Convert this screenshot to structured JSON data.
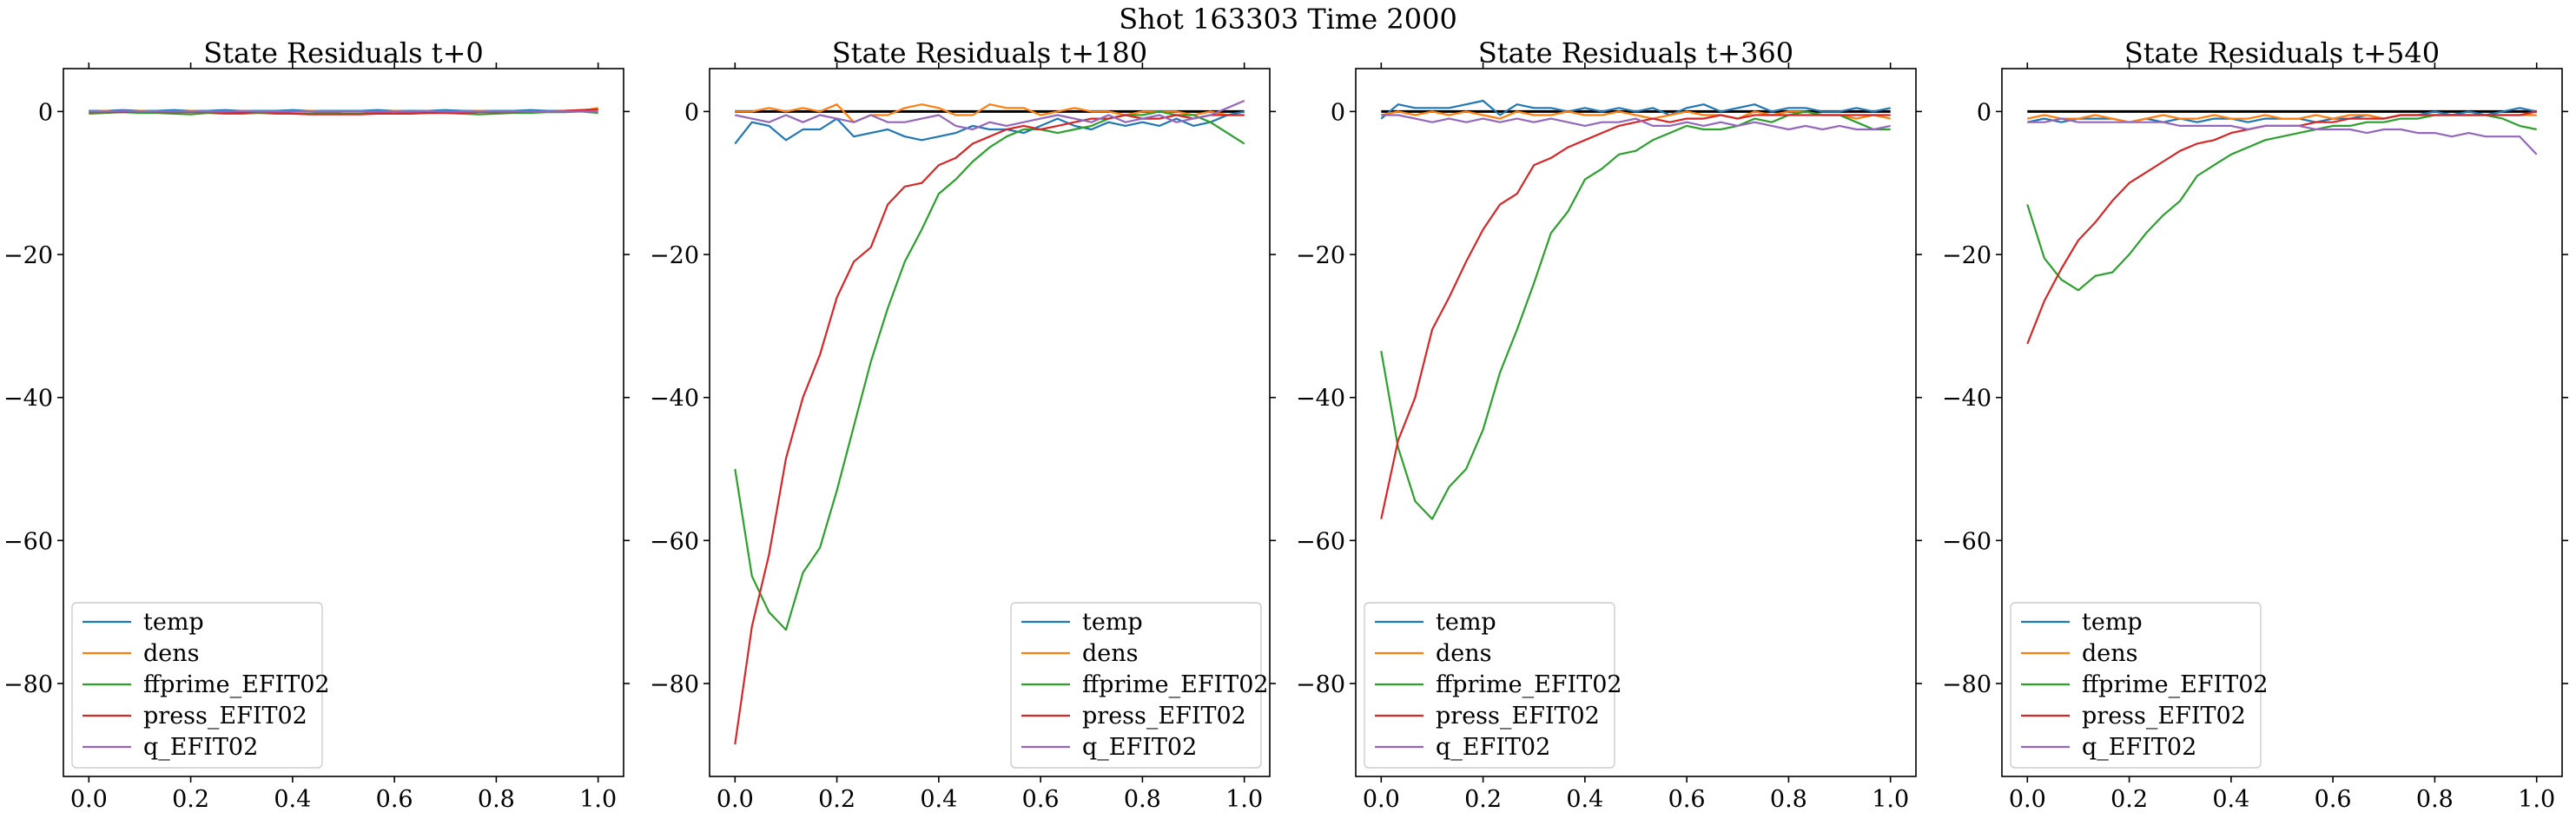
{
  "figure": {
    "suptitle": "Shot 163303   Time 2000"
  },
  "colors": {
    "temp": "#1f77b4",
    "dens": "#ff7f0e",
    "ffprime_EFIT02": "#2ca02c",
    "press_EFIT02": "#d62728",
    "q_EFIT02": "#9467bd",
    "zero_line": "#000000"
  },
  "chart_data": [
    {
      "type": "line",
      "title": "State Residuals t+0",
      "xlim": [
        -0.05,
        1.05
      ],
      "ylim": [
        -93,
        6
      ],
      "xticks": [
        "0.0",
        "0.2",
        "0.4",
        "0.6",
        "0.8",
        "1.0"
      ],
      "yticks": [
        "0",
        "−20",
        "−40",
        "−60",
        "−80"
      ],
      "legend_position": "lower-left",
      "zero_line": false,
      "x": [
        0,
        0.0333,
        0.0667,
        0.1,
        0.1333,
        0.1667,
        0.2,
        0.2333,
        0.2667,
        0.3,
        0.3333,
        0.3667,
        0.4,
        0.4333,
        0.4667,
        0.5,
        0.5333,
        0.5667,
        0.6,
        0.6333,
        0.6667,
        0.7,
        0.7333,
        0.7667,
        0.8,
        0.8333,
        0.8667,
        0.9,
        0.9333,
        0.9667,
        1.0
      ],
      "series": [
        {
          "name": "temp",
          "values": [
            0.1,
            0.1,
            0.2,
            0.1,
            0.1,
            0.2,
            0.1,
            0.1,
            0.2,
            0.1,
            0.1,
            0.1,
            0.2,
            0.1,
            0.1,
            0.1,
            0.1,
            0.2,
            0.1,
            0.1,
            0.1,
            0.2,
            0.1,
            0.1,
            0.1,
            0.1,
            0.2,
            0.1,
            0.1,
            0.2,
            0.3
          ]
        },
        {
          "name": "dens",
          "values": [
            0.0,
            0.1,
            0.0,
            0.1,
            0.0,
            0.0,
            0.1,
            0.0,
            0.0,
            0.1,
            0.0,
            0.0,
            0.0,
            0.1,
            0.0,
            0.0,
            0.0,
            0.0,
            0.1,
            0.0,
            0.0,
            0.0,
            0.0,
            0.1,
            0.0,
            0.0,
            0.0,
            0.0,
            0.1,
            0.1,
            0.5
          ]
        },
        {
          "name": "ffprime_EFIT02",
          "values": [
            -0.3,
            -0.2,
            -0.1,
            -0.2,
            -0.2,
            -0.3,
            -0.4,
            -0.2,
            -0.3,
            -0.3,
            -0.2,
            -0.3,
            -0.3,
            -0.3,
            -0.2,
            -0.3,
            -0.3,
            -0.2,
            -0.3,
            -0.2,
            -0.2,
            -0.2,
            -0.3,
            -0.4,
            -0.3,
            -0.2,
            -0.2,
            -0.1,
            -0.1,
            0.0,
            -0.2
          ]
        },
        {
          "name": "press_EFIT02",
          "values": [
            -0.1,
            -0.1,
            -0.1,
            0.0,
            -0.1,
            -0.1,
            -0.1,
            -0.1,
            -0.2,
            -0.2,
            -0.1,
            -0.2,
            -0.3,
            -0.4,
            -0.4,
            -0.4,
            -0.4,
            -0.3,
            -0.3,
            -0.3,
            -0.2,
            -0.2,
            -0.2,
            -0.1,
            -0.1,
            -0.1,
            0.0,
            0.0,
            0.1,
            0.2,
            0.3
          ]
        },
        {
          "name": "q_EFIT02",
          "values": [
            0.0,
            0.0,
            0.1,
            0.0,
            0.0,
            0.0,
            0.0,
            0.0,
            0.0,
            0.1,
            0.0,
            0.0,
            0.0,
            0.0,
            0.0,
            0.0,
            0.0,
            0.0,
            0.0,
            0.0,
            0.1,
            0.0,
            0.0,
            0.0,
            0.0,
            0.0,
            0.0,
            0.0,
            0.0,
            0.0,
            0.0
          ]
        }
      ]
    },
    {
      "type": "line",
      "title": "State Residuals t+180",
      "xlim": [
        -0.05,
        1.05
      ],
      "ylim": [
        -93,
        6
      ],
      "xticks": [
        "0.0",
        "0.2",
        "0.4",
        "0.6",
        "0.8",
        "1.0"
      ],
      "yticks": [
        "0",
        "−20",
        "−40",
        "−60",
        "−80"
      ],
      "legend_position": "lower-right",
      "zero_line": true,
      "x": [
        0,
        0.0333,
        0.0667,
        0.1,
        0.1333,
        0.1667,
        0.2,
        0.2333,
        0.2667,
        0.3,
        0.3333,
        0.3667,
        0.4,
        0.4333,
        0.4667,
        0.5,
        0.5333,
        0.5667,
        0.6,
        0.6333,
        0.6667,
        0.7,
        0.7333,
        0.7667,
        0.8,
        0.8333,
        0.8667,
        0.9,
        0.9333,
        0.9667,
        1.0
      ],
      "series": [
        {
          "name": "temp",
          "values": [
            -4.5,
            -1.5,
            -2.0,
            -4.0,
            -2.5,
            -2.5,
            -1.0,
            -3.5,
            -3.0,
            -2.5,
            -3.5,
            -4.0,
            -3.5,
            -3.0,
            -2.0,
            -2.5,
            -2.5,
            -3.0,
            -2.0,
            -1.0,
            -2.0,
            -2.5,
            -1.5,
            -2.0,
            -1.5,
            -2.0,
            -1.0,
            -2.0,
            -1.5,
            -0.5,
            0.0
          ]
        },
        {
          "name": "dens",
          "values": [
            0.0,
            0.0,
            0.5,
            0.0,
            0.5,
            0.0,
            1.0,
            -1.5,
            -0.5,
            -0.5,
            0.5,
            1.0,
            0.5,
            -0.5,
            -0.5,
            1.0,
            0.5,
            0.5,
            -0.5,
            0.0,
            0.5,
            0.0,
            0.0,
            -0.5,
            0.0,
            0.0,
            0.0,
            -0.5,
            0.0,
            -0.5,
            -0.5
          ]
        },
        {
          "name": "ffprime_EFIT02",
          "values": [
            -50.0,
            -65.0,
            -70.0,
            -72.5,
            -64.5,
            -61.0,
            -53.0,
            -44.0,
            -35.0,
            -27.5,
            -21.0,
            -16.5,
            -11.5,
            -9.5,
            -7.0,
            -5.0,
            -3.5,
            -2.5,
            -2.5,
            -3.0,
            -2.5,
            -2.0,
            -1.0,
            -0.5,
            -0.5,
            0.0,
            -0.5,
            -0.5,
            -1.5,
            -3.0,
            -4.5
          ]
        },
        {
          "name": "press_EFIT02",
          "values": [
            -88.5,
            -72.0,
            -62.0,
            -48.5,
            -40.0,
            -34.0,
            -26.0,
            -21.0,
            -19.0,
            -13.0,
            -10.5,
            -10.0,
            -7.5,
            -6.5,
            -4.5,
            -3.5,
            -2.5,
            -2.0,
            -2.5,
            -2.0,
            -1.5,
            -1.0,
            -1.0,
            -0.5,
            -1.0,
            -1.0,
            -0.5,
            -1.0,
            -0.5,
            -0.5,
            -0.5
          ]
        },
        {
          "name": "q_EFIT02",
          "values": [
            -0.5,
            -1.0,
            -1.5,
            -0.5,
            -1.5,
            -0.5,
            -1.0,
            -1.5,
            -0.5,
            -1.5,
            -1.5,
            -1.0,
            -0.5,
            -2.0,
            -2.5,
            -1.5,
            -2.0,
            -1.5,
            -1.0,
            -0.5,
            -1.0,
            -1.5,
            -0.5,
            -1.5,
            -1.0,
            -0.5,
            -1.5,
            -1.0,
            -0.5,
            0.5,
            1.5
          ]
        }
      ]
    },
    {
      "type": "line",
      "title": "State Residuals t+360",
      "xlim": [
        -0.05,
        1.05
      ],
      "ylim": [
        -93,
        6
      ],
      "xticks": [
        "0.0",
        "0.2",
        "0.4",
        "0.6",
        "0.8",
        "1.0"
      ],
      "yticks": [
        "0",
        "−20",
        "−40",
        "−60",
        "−80"
      ],
      "legend_position": "lower-left",
      "zero_line": true,
      "x": [
        0,
        0.0333,
        0.0667,
        0.1,
        0.1333,
        0.1667,
        0.2,
        0.2333,
        0.2667,
        0.3,
        0.3333,
        0.3667,
        0.4,
        0.4333,
        0.4667,
        0.5,
        0.5333,
        0.5667,
        0.6,
        0.6333,
        0.6667,
        0.7,
        0.7333,
        0.7667,
        0.8,
        0.8333,
        0.8667,
        0.9,
        0.9333,
        0.9667,
        1.0
      ],
      "series": [
        {
          "name": "temp",
          "values": [
            -1.0,
            1.0,
            0.5,
            0.5,
            0.5,
            1.0,
            1.5,
            -0.5,
            1.0,
            0.5,
            0.5,
            0.0,
            0.5,
            0.0,
            0.5,
            0.0,
            0.5,
            -0.5,
            0.5,
            1.0,
            0.0,
            0.5,
            1.0,
            0.0,
            0.5,
            0.5,
            0.0,
            0.0,
            0.5,
            0.0,
            0.5
          ]
        },
        {
          "name": "dens",
          "values": [
            -0.5,
            0.0,
            -0.5,
            0.0,
            -0.5,
            0.0,
            -0.5,
            -1.0,
            0.0,
            -0.5,
            -0.5,
            0.0,
            -0.5,
            -0.5,
            0.0,
            -0.5,
            -1.0,
            -0.5,
            0.0,
            -0.5,
            -0.5,
            -1.0,
            0.0,
            -0.5,
            0.0,
            0.0,
            -0.5,
            -0.5,
            -1.0,
            -0.5,
            -1.0
          ]
        },
        {
          "name": "ffprime_EFIT02",
          "values": [
            -33.5,
            -47.0,
            -54.5,
            -57.0,
            -52.5,
            -50.0,
            -44.5,
            -36.5,
            -30.5,
            -24.0,
            -17.0,
            -14.0,
            -9.5,
            -8.0,
            -6.0,
            -5.5,
            -4.0,
            -3.0,
            -2.0,
            -2.5,
            -2.5,
            -2.0,
            -1.0,
            -1.5,
            -0.5,
            0.0,
            -0.5,
            -0.5,
            -1.5,
            -2.5,
            -2.5
          ]
        },
        {
          "name": "press_EFIT02",
          "values": [
            -57.0,
            -46.0,
            -40.0,
            -30.5,
            -26.0,
            -21.0,
            -16.5,
            -13.0,
            -11.5,
            -7.5,
            -6.5,
            -5.0,
            -4.0,
            -3.0,
            -2.0,
            -1.5,
            -1.0,
            -1.5,
            -1.0,
            -1.0,
            -0.5,
            -1.0,
            -0.5,
            -0.5,
            -0.5,
            -0.5,
            -0.5,
            -0.5,
            -0.5,
            -0.5,
            -0.5
          ]
        },
        {
          "name": "q_EFIT02",
          "values": [
            -0.5,
            -0.5,
            -1.0,
            -1.5,
            -1.0,
            -1.5,
            -1.0,
            -1.5,
            -1.0,
            -1.5,
            -1.0,
            -1.5,
            -2.0,
            -1.5,
            -1.5,
            -1.0,
            -2.0,
            -2.0,
            -1.5,
            -2.0,
            -1.5,
            -2.0,
            -1.5,
            -2.0,
            -2.5,
            -2.0,
            -2.5,
            -2.0,
            -2.5,
            -2.5,
            -2.0
          ]
        }
      ]
    },
    {
      "type": "line",
      "title": "State Residuals t+540",
      "xlim": [
        -0.05,
        1.05
      ],
      "ylim": [
        -93,
        6
      ],
      "xticks": [
        "0.0",
        "0.2",
        "0.4",
        "0.6",
        "0.8",
        "1.0"
      ],
      "yticks": [
        "0",
        "−20",
        "−40",
        "−60",
        "−80"
      ],
      "legend_position": "lower-left",
      "zero_line": true,
      "x": [
        0,
        0.0333,
        0.0667,
        0.1,
        0.1333,
        0.1667,
        0.2,
        0.2333,
        0.2667,
        0.3,
        0.3333,
        0.3667,
        0.4,
        0.4333,
        0.4667,
        0.5,
        0.5333,
        0.5667,
        0.6,
        0.6333,
        0.6667,
        0.7,
        0.7333,
        0.7667,
        0.8,
        0.8333,
        0.8667,
        0.9,
        0.9333,
        0.9667,
        1.0
      ],
      "series": [
        {
          "name": "temp",
          "values": [
            -1.5,
            -1.0,
            -1.5,
            -1.0,
            -1.0,
            -1.0,
            -1.5,
            -1.0,
            -1.5,
            -1.0,
            -1.5,
            -1.0,
            -1.0,
            -1.5,
            -1.0,
            -1.0,
            -1.0,
            -1.5,
            -1.0,
            -1.0,
            -0.5,
            -1.0,
            -0.5,
            -0.5,
            0.0,
            -0.5,
            0.0,
            -0.5,
            0.0,
            0.5,
            0.0
          ]
        },
        {
          "name": "dens",
          "values": [
            -1.0,
            -0.5,
            -1.0,
            -1.0,
            -0.5,
            -1.0,
            -1.5,
            -1.0,
            -0.5,
            -1.0,
            -1.0,
            -0.5,
            -1.0,
            -1.0,
            -0.5,
            -1.0,
            -1.0,
            -0.5,
            -1.0,
            -0.5,
            -0.5,
            -1.0,
            -0.5,
            -0.5,
            -0.5,
            -0.5,
            -0.5,
            -0.5,
            -0.5,
            -0.5,
            -0.5
          ]
        },
        {
          "name": "ffprime_EFIT02",
          "values": [
            -13.0,
            -20.5,
            -23.5,
            -25.0,
            -23.0,
            -22.5,
            -20.0,
            -17.0,
            -14.5,
            -12.5,
            -9.0,
            -7.5,
            -6.0,
            -5.0,
            -4.0,
            -3.5,
            -3.0,
            -2.5,
            -2.0,
            -2.0,
            -1.5,
            -1.5,
            -1.0,
            -1.0,
            -0.5,
            -0.5,
            -0.5,
            -0.5,
            -1.0,
            -2.0,
            -2.5
          ]
        },
        {
          "name": "press_EFIT02",
          "values": [
            -32.5,
            -26.5,
            -22.0,
            -18.0,
            -15.5,
            -12.5,
            -10.0,
            -8.5,
            -7.0,
            -5.5,
            -4.5,
            -4.0,
            -3.0,
            -2.5,
            -2.0,
            -2.0,
            -2.0,
            -1.5,
            -1.5,
            -1.0,
            -1.0,
            -1.0,
            -0.5,
            -0.5,
            -0.5,
            -0.5,
            -0.5,
            -0.5,
            -0.5,
            -0.5,
            0.0
          ]
        },
        {
          "name": "q_EFIT02",
          "values": [
            -1.5,
            -1.5,
            -1.0,
            -1.5,
            -1.5,
            -1.5,
            -1.5,
            -1.5,
            -1.5,
            -2.0,
            -2.0,
            -2.0,
            -2.0,
            -2.5,
            -2.0,
            -2.0,
            -2.0,
            -2.5,
            -2.5,
            -2.5,
            -3.0,
            -2.5,
            -2.5,
            -3.0,
            -3.0,
            -3.5,
            -3.0,
            -3.5,
            -3.5,
            -3.5,
            -6.0
          ]
        }
      ]
    }
  ]
}
